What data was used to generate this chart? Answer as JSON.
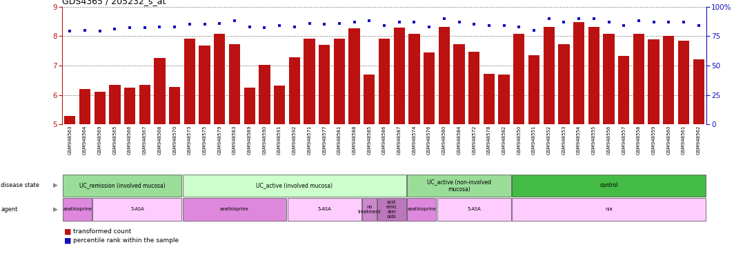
{
  "title": "GDS4365 / 205232_s_at",
  "samples": [
    "GSM948563",
    "GSM948564",
    "GSM948569",
    "GSM948565",
    "GSM948566",
    "GSM948567",
    "GSM948568",
    "GSM948570",
    "GSM948573",
    "GSM948575",
    "GSM948579",
    "GSM948583",
    "GSM948589",
    "GSM948590",
    "GSM948591",
    "GSM948592",
    "GSM948571",
    "GSM948577",
    "GSM948581",
    "GSM948588",
    "GSM948585",
    "GSM948586",
    "GSM948587",
    "GSM948574",
    "GSM948576",
    "GSM948580",
    "GSM948584",
    "GSM948572",
    "GSM948578",
    "GSM948582",
    "GSM948550",
    "GSM948551",
    "GSM948552",
    "GSM948553",
    "GSM948554",
    "GSM948555",
    "GSM948556",
    "GSM948557",
    "GSM948558",
    "GSM948559",
    "GSM948560",
    "GSM948561",
    "GSM948562"
  ],
  "bar_values": [
    5.3,
    6.2,
    6.1,
    6.35,
    6.25,
    6.35,
    7.27,
    6.28,
    7.92,
    7.68,
    8.07,
    7.72,
    6.25,
    7.03,
    6.32,
    7.28,
    7.92,
    7.7,
    7.92,
    8.27,
    6.7,
    7.92,
    8.28,
    8.07,
    7.45,
    8.32,
    7.72,
    7.47,
    6.73,
    6.7,
    8.07,
    7.35,
    8.32,
    7.72,
    8.47,
    8.32,
    8.07,
    7.32,
    8.07,
    7.9,
    8.0,
    7.85,
    7.22
  ],
  "percentile_values": [
    79,
    80,
    79,
    81,
    82,
    82,
    83,
    83,
    85,
    85,
    86,
    88,
    83,
    82,
    84,
    83,
    86,
    85,
    86,
    87,
    88,
    84,
    87,
    87,
    83,
    90,
    87,
    85,
    84,
    84,
    83,
    80,
    90,
    87,
    90,
    90,
    87,
    84,
    88,
    87,
    87,
    87,
    84
  ],
  "ylim_left": [
    5,
    9
  ],
  "ylim_right": [
    0,
    100
  ],
  "yticks_left": [
    5,
    6,
    7,
    8,
    9
  ],
  "yticks_right": [
    0,
    25,
    50,
    75,
    100
  ],
  "bar_color": "#bb1111",
  "dot_color": "#1111bb",
  "disease_state_groups": [
    {
      "label": "UC_remission (involved mucosa)",
      "start": 0,
      "end": 8,
      "color": "#99dd99"
    },
    {
      "label": "UC_active (involved mucosa)",
      "start": 8,
      "end": 23,
      "color": "#ccffcc"
    },
    {
      "label": "UC_active (non-involved\nmucosa)",
      "start": 23,
      "end": 30,
      "color": "#99dd99"
    },
    {
      "label": "control",
      "start": 30,
      "end": 43,
      "color": "#44bb44"
    }
  ],
  "agent_groups": [
    {
      "label": "azathioprine",
      "start": 0,
      "end": 2,
      "color": "#dd88dd"
    },
    {
      "label": "5-ASA",
      "start": 2,
      "end": 8,
      "color": "#ffccff"
    },
    {
      "label": "azathioprine",
      "start": 8,
      "end": 15,
      "color": "#dd88dd"
    },
    {
      "label": "5-ASA",
      "start": 15,
      "end": 20,
      "color": "#ffccff"
    },
    {
      "label": "no\ntreatment",
      "start": 20,
      "end": 21,
      "color": "#cc88cc"
    },
    {
      "label": "syst\nemic\nster\noids",
      "start": 21,
      "end": 23,
      "color": "#bb77bb"
    },
    {
      "label": "azathioprine",
      "start": 23,
      "end": 25,
      "color": "#dd88dd"
    },
    {
      "label": "5-ASA",
      "start": 25,
      "end": 30,
      "color": "#ffccff"
    },
    {
      "label": "n/a",
      "start": 30,
      "end": 43,
      "color": "#ffccff"
    }
  ],
  "grid_color": "#888888",
  "bg_color": "#ffffff",
  "left_axis_color": "#bb1111",
  "right_axis_color": "#1111bb"
}
